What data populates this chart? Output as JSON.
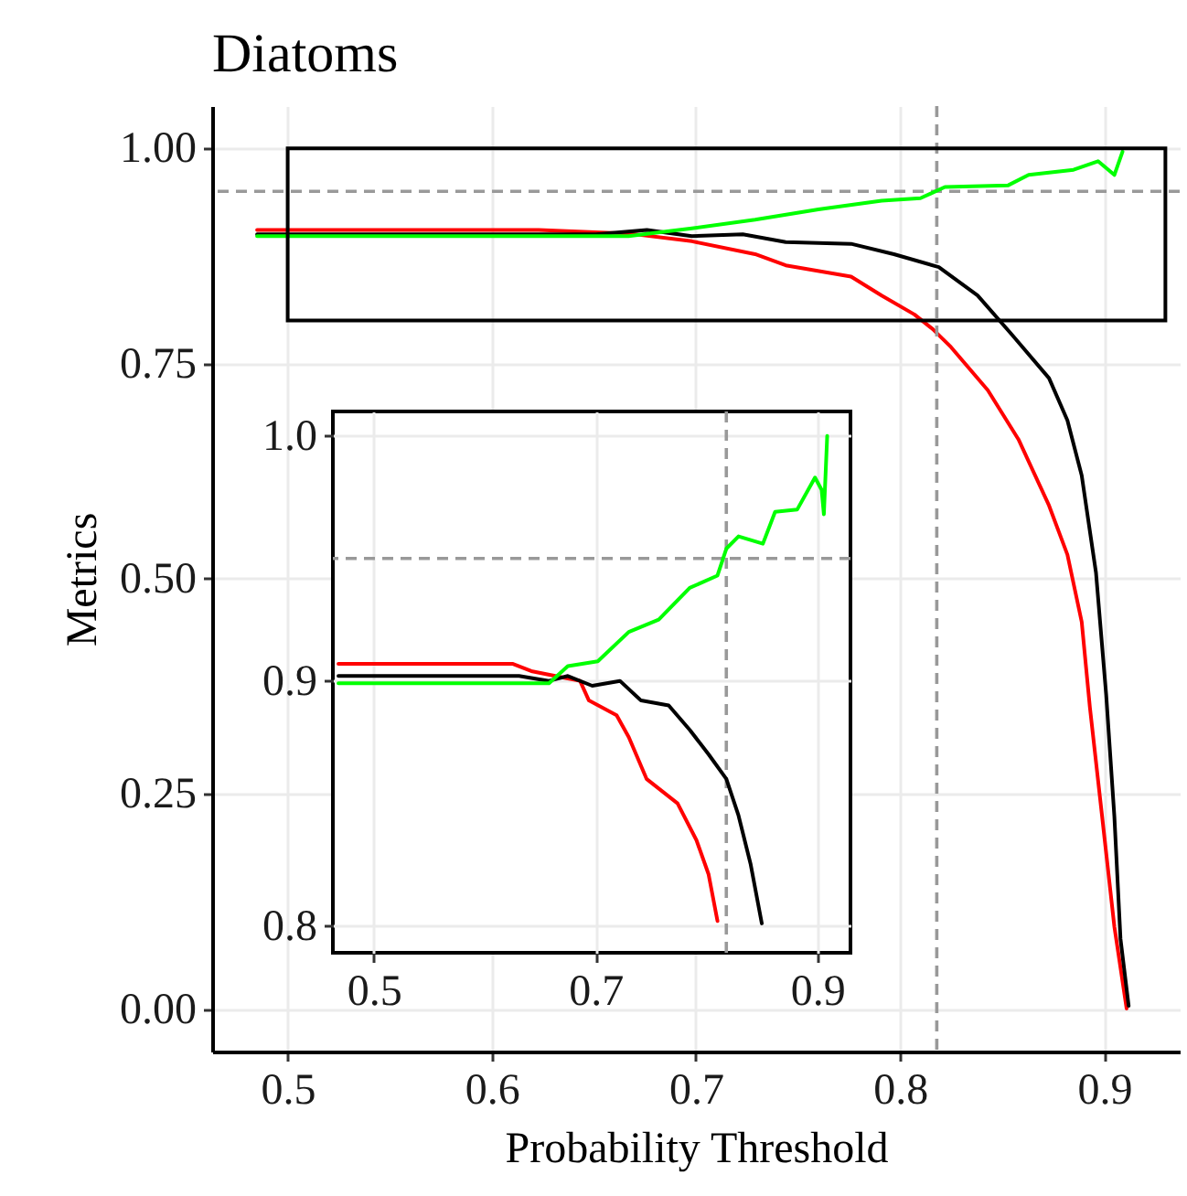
{
  "chart_data": [
    {
      "type": "line",
      "title": "Diatoms",
      "xlabel": "Probability Threshold",
      "ylabel": "Metrics",
      "xlim": [
        0.463,
        0.937
      ],
      "ylim": [
        -0.049,
        1.049
      ],
      "xticks": [
        0.5,
        0.6,
        0.7,
        0.8,
        0.9
      ],
      "yticks": [
        {
          "value": 0,
          "label": "0.00"
        },
        {
          "value": 0.25,
          "label": "0.25"
        },
        {
          "value": 0.5,
          "label": "0.50"
        },
        {
          "value": 0.75,
          "label": "0.75"
        },
        {
          "value": 1,
          "label": "1.00"
        }
      ],
      "grid": true,
      "line_style": "solid",
      "series": [
        {
          "color": "#ff0000",
          "x": [
            0.485,
            0.623,
            0.667,
            0.698,
            0.729,
            0.744,
            0.776,
            0.791,
            0.807,
            0.816,
            0.825,
            0.843,
            0.858,
            0.873,
            0.882,
            0.889,
            0.893,
            0.899,
            0.905,
            0.911
          ],
          "values": [
            0.905,
            0.905,
            0.901,
            0.892,
            0.877,
            0.864,
            0.851,
            0.829,
            0.807,
            0.79,
            0.769,
            0.719,
            0.662,
            0.585,
            0.528,
            0.45,
            0.351,
            0.224,
            0.096,
            0.001
          ]
        },
        {
          "color": "#000000",
          "x": [
            0.485,
            0.651,
            0.676,
            0.698,
            0.723,
            0.744,
            0.776,
            0.797,
            0.819,
            0.838,
            0.855,
            0.873,
            0.882,
            0.889,
            0.896,
            0.901,
            0.905,
            0.908,
            0.912
          ],
          "values": [
            0.9,
            0.9,
            0.905,
            0.898,
            0.9,
            0.891,
            0.889,
            0.877,
            0.862,
            0.829,
            0.783,
            0.733,
            0.684,
            0.62,
            0.507,
            0.365,
            0.224,
            0.082,
            0.004
          ]
        },
        {
          "color": "#00ff00",
          "x": [
            0.485,
            0.667,
            0.698,
            0.729,
            0.76,
            0.791,
            0.81,
            0.822,
            0.853,
            0.863,
            0.885,
            0.897,
            0.905,
            0.909
          ],
          "values": [
            0.898,
            0.898,
            0.907,
            0.917,
            0.929,
            0.939,
            0.942,
            0.955,
            0.957,
            0.969,
            0.975,
            0.985,
            0.969,
            0.996
          ]
        }
      ],
      "ref_lines": [
        {
          "axis": "y",
          "value": 0.95,
          "color": "#999999",
          "line_style": "dashed"
        },
        {
          "axis": "x",
          "value": 0.818,
          "color": "#999999",
          "line_style": "dashed"
        }
      ]
    },
    {
      "type": "line",
      "xlim": [
        0.463,
        0.93
      ],
      "ylim": [
        0.789,
        1.01
      ],
      "xticks": [
        0.5,
        0.7,
        0.9
      ],
      "yticks": [
        0.8,
        0.9,
        {
          "value": 1,
          "label": "1.0"
        }
      ],
      "grid": true,
      "line_style": "solid",
      "series": [
        {
          "color": "#ff0000",
          "x": [
            0.468,
            0.625,
            0.642,
            0.675,
            0.686,
            0.694,
            0.719,
            0.73,
            0.746,
            0.774,
            0.791,
            0.802,
            0.81
          ],
          "values": [
            0.907,
            0.907,
            0.904,
            0.901,
            0.9,
            0.892,
            0.886,
            0.877,
            0.86,
            0.85,
            0.835,
            0.821,
            0.802
          ]
        },
        {
          "color": "#000000",
          "x": [
            0.468,
            0.631,
            0.658,
            0.675,
            0.697,
            0.722,
            0.741,
            0.766,
            0.785,
            0.802,
            0.818,
            0.829,
            0.84,
            0.85
          ],
          "values": [
            0.902,
            0.902,
            0.9,
            0.902,
            0.898,
            0.9,
            0.892,
            0.89,
            0.88,
            0.87,
            0.86,
            0.845,
            0.825,
            0.801
          ]
        },
        {
          "color": "#00ff00",
          "x": [
            0.468,
            0.658,
            0.675,
            0.702,
            0.73,
            0.757,
            0.785,
            0.81,
            0.818,
            0.829,
            0.851,
            0.862,
            0.882,
            0.898,
            0.904,
            0.906,
            0.909
          ],
          "values": [
            0.899,
            0.899,
            0.906,
            0.908,
            0.92,
            0.925,
            0.938,
            0.943,
            0.954,
            0.959,
            0.956,
            0.969,
            0.97,
            0.983,
            0.978,
            0.968,
            1.0
          ]
        }
      ],
      "ref_lines": [
        {
          "axis": "y",
          "value": 0.95,
          "color": "#999999",
          "line_style": "dashed"
        },
        {
          "axis": "x",
          "value": 0.818,
          "color": "#999999",
          "line_style": "dashed"
        }
      ]
    }
  ]
}
